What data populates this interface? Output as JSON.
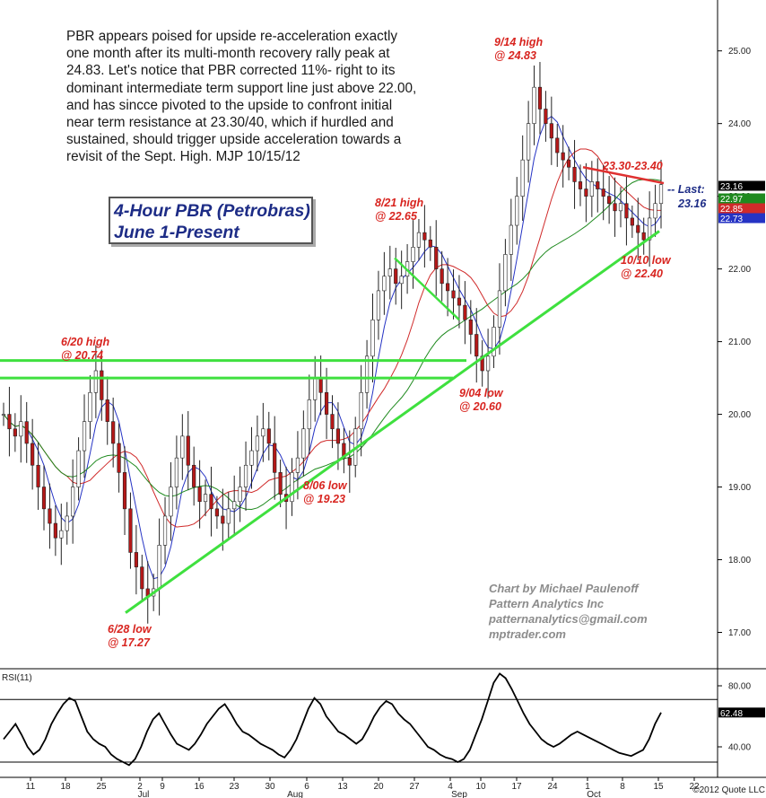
{
  "commentary": "PBR appears poised for upside re-acceleration exactly\none month after its multi-month recovery rally peak at\n24.83. Let's notice that PBR corrected 11%- right to its\ndominant intermediate term support line just above 22.00,\nand has sincce pivoted to the upside to confront initial\nnear term resistance at 23.30/40, which if hurdled and\nsustained, should trigger upside acceleration towards a\nrevisit of the Sept. High.  MJP  10/15/12",
  "title_line1": "4-Hour PBR (Petrobras)",
  "title_line2": "June 1-Present",
  "credit": {
    "line1": "Chart by Michael Paulenoff",
    "line2": "Pattern Analytics Inc",
    "line3": "patternanalytics@gmail.com",
    "line4": "mptrader.com"
  },
  "copyright": "©2012 Quote LLC",
  "rsi_label": "RSI(11)",
  "last_label_line1": "-- Last:",
  "last_label_line2": "23.16",
  "colors": {
    "price_bar": "#b51818",
    "ma_fast": "#2533c4",
    "ma_mid": "#d02a2a",
    "ma_slow": "#1f8a1f",
    "trendline": "#3fe03f",
    "resistance": "#e03030",
    "annotation": "#d8241f",
    "title": "#1d2c86"
  },
  "chart_data": {
    "type": "ohlc",
    "ylim": [
      16.5,
      25.7
    ],
    "yticks": [
      "17.00",
      "18.00",
      "19.00",
      "20.00",
      "21.00",
      "22.00",
      "23.00",
      "24.00",
      "25.00"
    ],
    "x_ticks": [
      "11",
      "18",
      "25",
      "2",
      "9",
      "16",
      "23",
      "30",
      "6",
      "13",
      "20",
      "27",
      "4",
      "10",
      "17",
      "24",
      "1",
      "8",
      "15",
      "22"
    ],
    "months": [
      "Jul",
      "Aug",
      "Sep",
      "Oct"
    ],
    "price_tags": [
      {
        "value": "23.16",
        "color": "#000000"
      },
      {
        "value": "22.97",
        "color": "#1f8a1f"
      },
      {
        "value": "22.85",
        "color": "#d02a2a"
      },
      {
        "value": "22.73",
        "color": "#2533c4"
      }
    ],
    "closes": [
      20.0,
      19.8,
      19.7,
      19.9,
      19.6,
      19.3,
      19.0,
      18.7,
      18.5,
      18.3,
      18.4,
      18.6,
      19.0,
      19.5,
      19.9,
      20.3,
      20.6,
      20.2,
      19.9,
      19.6,
      19.2,
      18.7,
      18.1,
      17.9,
      17.6,
      17.5,
      17.6,
      18.2,
      18.6,
      19.0,
      19.4,
      19.7,
      19.3,
      19.0,
      18.8,
      18.9,
      18.7,
      18.6,
      18.5,
      18.7,
      18.8,
      19.0,
      19.3,
      19.5,
      19.7,
      19.8,
      19.6,
      19.2,
      18.9,
      18.8,
      19.2,
      19.4,
      19.8,
      20.2,
      20.5,
      20.3,
      20.0,
      19.8,
      19.6,
      19.4,
      19.3,
      19.8,
      20.3,
      20.8,
      21.3,
      21.7,
      21.9,
      22.0,
      21.8,
      21.9,
      22.1,
      22.3,
      22.5,
      22.4,
      22.3,
      22.0,
      21.8,
      21.7,
      21.6,
      21.5,
      21.3,
      21.1,
      20.8,
      20.6,
      20.8,
      21.2,
      21.7,
      22.2,
      22.6,
      23.0,
      23.5,
      24.0,
      24.5,
      24.2,
      24.0,
      23.8,
      23.6,
      23.5,
      23.4,
      23.2,
      23.1,
      23.0,
      23.2,
      23.1,
      23.0,
      22.9,
      22.8,
      22.9,
      22.7,
      22.6,
      22.5,
      22.4,
      22.7,
      22.9,
      23.16
    ],
    "annotations": [
      {
        "text_line1": "6/20 high",
        "text_line2": "@ 20.74"
      },
      {
        "text_line1": "6/28 low",
        "text_line2": "@ 17.27"
      },
      {
        "text_line1": "8/06 low",
        "text_line2": "@ 19.23"
      },
      {
        "text_line1": "8/21 high",
        "text_line2": "@ 22.65"
      },
      {
        "text_line1": "9/04 low",
        "text_line2": "@ 20.60"
      },
      {
        "text_line1": "9/14 high",
        "text_line2": "@ 24.83"
      },
      {
        "text_line1": "10/10 low",
        "text_line2": "@ 22.40"
      },
      {
        "text_line1": "23.30-23.40",
        "text_line2": ""
      }
    ],
    "rsi": {
      "ylim": [
        20,
        90
      ],
      "yticks": [
        "80.00",
        "40.00"
      ],
      "reference_levels": [
        71,
        30
      ],
      "last_value": "62.48",
      "values": [
        45,
        50,
        55,
        48,
        40,
        35,
        38,
        45,
        55,
        62,
        68,
        72,
        70,
        60,
        50,
        45,
        42,
        40,
        35,
        32,
        30,
        28,
        32,
        40,
        50,
        58,
        62,
        55,
        48,
        42,
        40,
        38,
        42,
        48,
        55,
        60,
        65,
        68,
        62,
        55,
        50,
        48,
        45,
        42,
        40,
        38,
        35,
        33,
        38,
        45,
        55,
        65,
        72,
        68,
        60,
        55,
        50,
        48,
        45,
        42,
        45,
        52,
        60,
        66,
        70,
        68,
        62,
        58,
        55,
        50,
        45,
        40,
        38,
        35,
        33,
        32,
        30,
        32,
        38,
        48,
        58,
        70,
        82,
        88,
        85,
        78,
        70,
        62,
        55,
        50,
        45,
        42,
        40,
        42,
        45,
        48,
        50,
        48,
        46,
        44,
        42,
        40,
        38,
        36,
        35,
        34,
        36,
        38,
        45,
        55,
        62.48
      ]
    }
  }
}
